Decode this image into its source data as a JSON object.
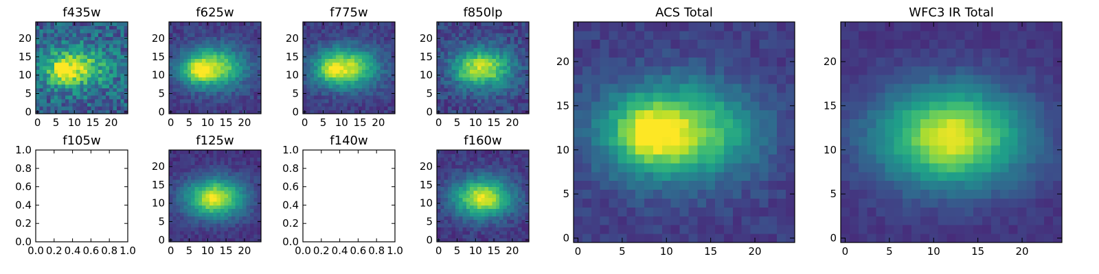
{
  "colormap": [
    "#440154",
    "#482878",
    "#3e4989",
    "#31688e",
    "#26828e",
    "#1f9e89",
    "#35b779",
    "#6ece58",
    "#b5de2b",
    "#fde725"
  ],
  "chart_data": [
    {
      "type": "heatmap",
      "title": "f435w",
      "grid": "24x24 pixels",
      "xticks": [
        "0",
        "5",
        "10",
        "15",
        "20"
      ],
      "yticks": [
        "0",
        "5",
        "10",
        "15",
        "20"
      ],
      "xlim": [
        -0.5,
        24.5
      ],
      "ylim": [
        -0.5,
        24.5
      ],
      "blob": {
        "cx": 10,
        "cy": 12,
        "sx": 6.5,
        "sy": 4,
        "peak": 0.55,
        "bg": 0.3,
        "noise": 0.35,
        "knot": [
          7,
          11,
          2,
          0.4
        ]
      }
    },
    {
      "type": "heatmap",
      "title": "f625w",
      "grid": "24x24 pixels",
      "xticks": [
        "0",
        "5",
        "10",
        "15",
        "20"
      ],
      "yticks": [
        "0",
        "5",
        "10",
        "15",
        "20"
      ],
      "xlim": [
        -0.5,
        24.5
      ],
      "ylim": [
        -0.5,
        24.5
      ],
      "blob": {
        "cx": 11,
        "cy": 12,
        "sx": 6,
        "sy": 3.8,
        "peak": 0.75,
        "bg": 0.18,
        "noise": 0.15,
        "knot": [
          7,
          11,
          2,
          0.25
        ]
      }
    },
    {
      "type": "heatmap",
      "title": "f775w",
      "grid": "24x24 pixels",
      "xticks": [
        "0",
        "5",
        "10",
        "15",
        "20"
      ],
      "yticks": [
        "0",
        "5",
        "10",
        "15",
        "20"
      ],
      "xlim": [
        -0.5,
        24.5
      ],
      "ylim": [
        -0.5,
        24.5
      ],
      "blob": {
        "cx": 11,
        "cy": 12,
        "sx": 6,
        "sy": 3.8,
        "peak": 0.75,
        "bg": 0.18,
        "noise": 0.15,
        "knot": [
          7,
          11,
          2,
          0.2
        ]
      }
    },
    {
      "type": "heatmap",
      "title": "f850lp",
      "grid": "24x24 pixels",
      "xticks": [
        "0",
        "5",
        "10",
        "15",
        "20"
      ],
      "yticks": [
        "0",
        "5",
        "10",
        "15",
        "20"
      ],
      "xlim": [
        -0.5,
        24.5
      ],
      "ylim": [
        -0.5,
        24.5
      ],
      "blob": {
        "cx": 12,
        "cy": 12,
        "sx": 5.5,
        "sy": 3.8,
        "peak": 0.7,
        "bg": 0.2,
        "noise": 0.2,
        "knot": [
          7,
          11,
          2,
          0.1
        ]
      }
    },
    {
      "type": "heatmap",
      "title": "ACS Total",
      "grid": "24x24 pixels",
      "xticks": [
        "0",
        "5",
        "10",
        "15",
        "20"
      ],
      "yticks": [
        "0",
        "5",
        "10",
        "15",
        "20"
      ],
      "xlim": [
        -0.5,
        24.5
      ],
      "ylim": [
        -0.5,
        24.5
      ],
      "blob": {
        "cx": 11,
        "cy": 12,
        "sx": 6,
        "sy": 3.8,
        "peak": 0.72,
        "bg": 0.18,
        "noise": 0.12,
        "knot": [
          8,
          12,
          2.2,
          0.3
        ]
      }
    },
    {
      "type": "heatmap",
      "title": "WFC3 IR Total",
      "grid": "24x24 pixels",
      "xticks": [
        "0",
        "5",
        "10",
        "15",
        "20"
      ],
      "yticks": [
        "0",
        "5",
        "10",
        "15",
        "20"
      ],
      "xlim": [
        -0.5,
        24.5
      ],
      "ylim": [
        -0.5,
        24.5
      ],
      "blob": {
        "cx": 12,
        "cy": 11.5,
        "sx": 6,
        "sy": 4,
        "peak": 0.75,
        "bg": 0.15,
        "noise": 0.08,
        "knot": [
          12,
          11,
          2,
          0.1
        ]
      }
    },
    {
      "type": "heatmap",
      "title": "f105w",
      "empty": true,
      "xticks": [
        "0.0",
        "0.2",
        "0.4",
        "0.6",
        "0.8",
        "1.0"
      ],
      "yticks": [
        "0.0",
        "0.2",
        "0.4",
        "0.6",
        "0.8",
        "1.0"
      ],
      "xlim": [
        0,
        1
      ],
      "ylim": [
        0,
        1
      ]
    },
    {
      "type": "heatmap",
      "title": "f125w",
      "grid": "24x24 pixels",
      "xticks": [
        "0",
        "5",
        "10",
        "15",
        "20"
      ],
      "yticks": [
        "0",
        "5",
        "10",
        "15",
        "20"
      ],
      "xlim": [
        -0.5,
        24.5
      ],
      "ylim": [
        -0.5,
        24.5
      ],
      "blob": {
        "cx": 12,
        "cy": 11.5,
        "sx": 5.8,
        "sy": 3.8,
        "peak": 0.75,
        "bg": 0.15,
        "noise": 0.12,
        "knot": [
          12,
          11,
          2,
          0.1
        ]
      }
    },
    {
      "type": "heatmap",
      "title": "f140w",
      "empty": true,
      "xticks": [
        "0.0",
        "0.2",
        "0.4",
        "0.6",
        "0.8",
        "1.0"
      ],
      "yticks": [
        "0.0",
        "0.2",
        "0.4",
        "0.6",
        "0.8",
        "1.0"
      ],
      "xlim": [
        0,
        1
      ],
      "ylim": [
        0,
        1
      ]
    },
    {
      "type": "heatmap",
      "title": "f160w",
      "grid": "24x24 pixels",
      "xticks": [
        "0",
        "5",
        "10",
        "15",
        "20"
      ],
      "yticks": [
        "0",
        "5",
        "10",
        "15",
        "20"
      ],
      "xlim": [
        -0.5,
        24.5
      ],
      "ylim": [
        -0.5,
        24.5
      ],
      "blob": {
        "cx": 12,
        "cy": 11.5,
        "sx": 5.8,
        "sy": 3.8,
        "peak": 0.75,
        "bg": 0.16,
        "noise": 0.14,
        "knot": [
          12,
          11,
          2,
          0.1
        ]
      }
    }
  ]
}
